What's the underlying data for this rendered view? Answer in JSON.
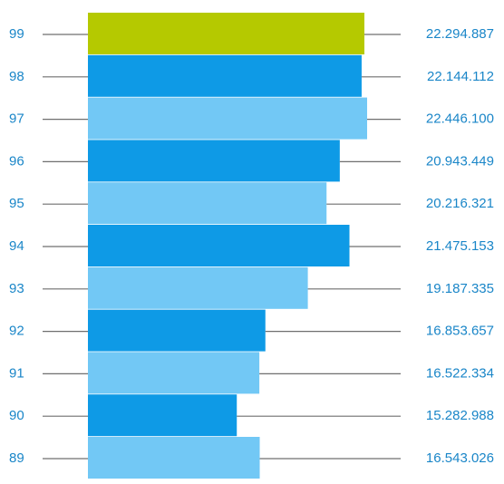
{
  "chart_data": {
    "type": "bar",
    "orientation": "horizontal",
    "categories": [
      "99",
      "98",
      "97",
      "96",
      "95",
      "94",
      "93",
      "92",
      "91",
      "90",
      "89"
    ],
    "values": [
      22294887,
      22144112,
      22446100,
      20943449,
      20216321,
      21475153,
      19187335,
      16853657,
      16522334,
      15282988,
      16543026
    ],
    "value_labels": [
      "22.294.887",
      "22.144.112",
      "22.446.100",
      "20.943.449",
      "20.216.321",
      "21.475.153",
      "19.187.335",
      "16.853.657",
      "16.522.334",
      "15.282.988",
      "16.543.026"
    ],
    "bar_colors": [
      "#b5c900",
      "#0e9ae6",
      "#72c8f5",
      "#0e9ae6",
      "#72c8f5",
      "#0e9ae6",
      "#72c8f5",
      "#0e9ae6",
      "#72c8f5",
      "#0e9ae6",
      "#72c8f5"
    ],
    "label_color": "#1a86c8",
    "leader_color": "#6f6f6f",
    "title": "",
    "xlabel": "",
    "ylabel": "",
    "xlim": [
      7100000,
      22446100
    ],
    "grid": false,
    "legend": "none"
  }
}
